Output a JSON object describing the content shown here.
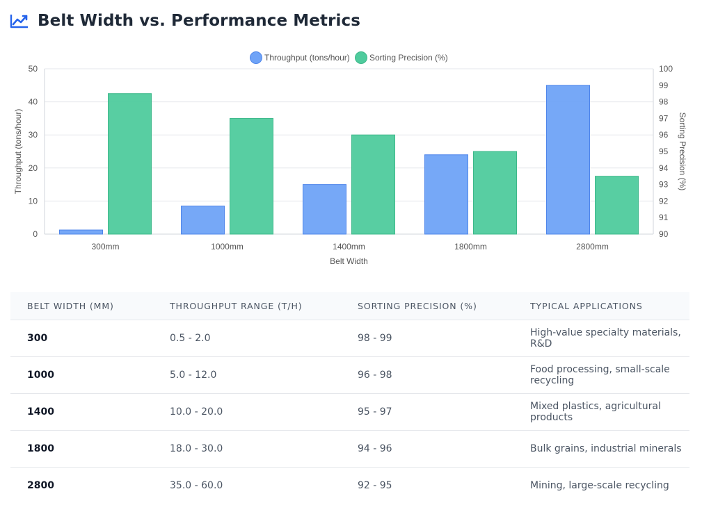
{
  "page": {
    "title": "Belt Width vs. Performance Metrics",
    "icon": "chart-line-icon",
    "accent": "#2563eb"
  },
  "chart_data": {
    "type": "bar",
    "categories": [
      "300mm",
      "1000mm",
      "1400mm",
      "1800mm",
      "2800mm"
    ],
    "series": [
      {
        "name": "Throughput (tons/hour)",
        "axis": "left",
        "values": [
          1.25,
          8.5,
          15,
          24,
          45
        ],
        "color": "#6fa3f7"
      },
      {
        "name": "Sorting Precision (%)",
        "axis": "right",
        "values": [
          98.5,
          97,
          96,
          95,
          93.5
        ],
        "color": "#4fcb9d"
      }
    ],
    "xlabel": "Belt Width",
    "ylabel": "Throughput (tons/hour)",
    "y2label": "Sorting Precision (%)",
    "ylim": [
      0,
      50
    ],
    "yticks": [
      0,
      10,
      20,
      30,
      40,
      50
    ],
    "y2lim": [
      90,
      100
    ],
    "y2ticks": [
      90,
      91,
      92,
      93,
      94,
      95,
      96,
      97,
      98,
      99,
      100
    ],
    "grid": true,
    "legend": "top-center"
  },
  "table": {
    "headers": [
      "Belt Width (mm)",
      "Throughput Range (t/h)",
      "Sorting Precision (%)",
      "Typical Applications"
    ],
    "rows": [
      [
        "300",
        "0.5 - 2.0",
        "98 - 99",
        "High-value specialty materials, R&D"
      ],
      [
        "1000",
        "5.0 - 12.0",
        "96 - 98",
        "Food processing, small-scale recycling"
      ],
      [
        "1400",
        "10.0 - 20.0",
        "95 - 97",
        "Mixed plastics, agricultural products"
      ],
      [
        "1800",
        "18.0 - 30.0",
        "94 - 96",
        "Bulk grains, industrial minerals"
      ],
      [
        "2800",
        "35.0 - 60.0",
        "92 - 95",
        "Mining, large-scale recycling"
      ]
    ]
  }
}
